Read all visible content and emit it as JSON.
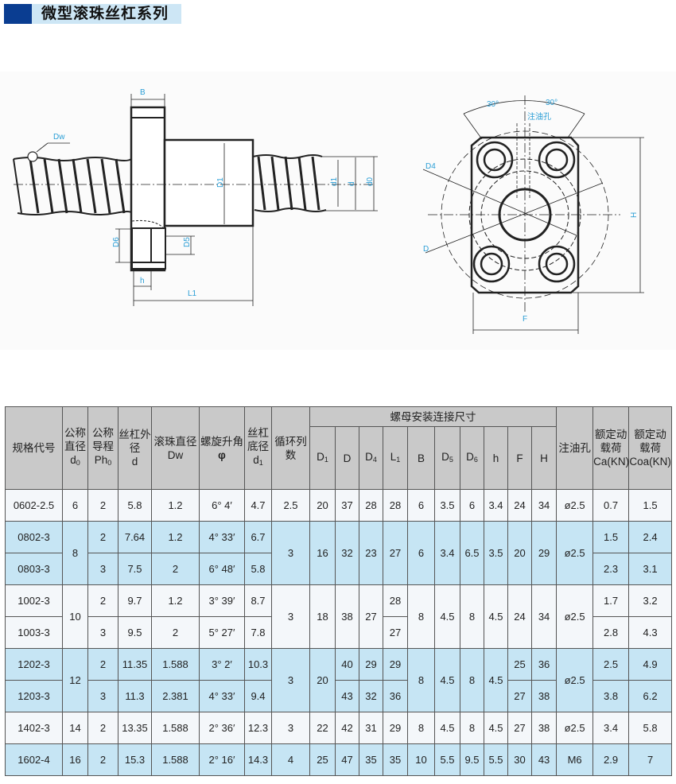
{
  "title": "微型滚珠丝杠系列",
  "drawing": {
    "labels": {
      "B": "B",
      "Dw": "Dw",
      "D1": "D1",
      "d1": "d1",
      "d": "d",
      "d0": "d0",
      "D6": "D6",
      "D5": "D5",
      "h": "h",
      "L1": "L1",
      "angle_left": "30°",
      "angle_right": "30°",
      "oil_hole": "注油孔",
      "D4": "D4",
      "D": "D",
      "H": "H",
      "F": "F"
    }
  },
  "table": {
    "headers": {
      "code": "规格代号",
      "d0": "公称直径",
      "d0_sym": "d",
      "d0_sub": "0",
      "ph": "公称导程",
      "ph_sym": "Ph",
      "ph_sub": "0",
      "d": "丝杠外径",
      "d_sym": "d",
      "dw": "滚珠直径Dw",
      "angle": "螺旋升角",
      "angle_sym": "φ",
      "d1": "丝杠底径",
      "d1_sym": "d",
      "d1_sub": "1",
      "circ": "循环列数",
      "group": "螺母安装连接尺寸",
      "sub": [
        {
          "t": "D",
          "s": "1"
        },
        {
          "t": "D",
          "s": ""
        },
        {
          "t": "D",
          "s": "4"
        },
        {
          "t": "L",
          "s": "1"
        },
        {
          "t": "B",
          "s": ""
        },
        {
          "t": "D",
          "s": "5"
        },
        {
          "t": "D",
          "s": "6"
        },
        {
          "t": "h",
          "s": ""
        },
        {
          "t": "F",
          "s": ""
        },
        {
          "t": "H",
          "s": ""
        }
      ],
      "oil": "注油孔",
      "ca": "额定动载荷Ca(KN)",
      "coa": "额定动载荷Coa(KN)"
    },
    "rows": [
      {
        "g": 0,
        "cells": [
          [
            "0602-2.5"
          ],
          [
            "6"
          ],
          [
            "2"
          ],
          [
            "5.8"
          ],
          [
            "1.2"
          ],
          [
            "6° 4′"
          ],
          [
            "4.7"
          ],
          [
            "2.5"
          ],
          [
            "20"
          ],
          [
            "37"
          ],
          [
            "28"
          ],
          [
            "28"
          ],
          [
            "6"
          ],
          [
            "3.5"
          ],
          [
            "6"
          ],
          [
            "3.4"
          ],
          [
            "24"
          ],
          [
            "34"
          ],
          [
            "ø2.5"
          ],
          [
            "0.7"
          ],
          [
            "1.5"
          ]
        ]
      },
      {
        "g": 1,
        "cells": [
          [
            "0802-3"
          ],
          [
            "8",
            2
          ],
          [
            "2"
          ],
          [
            "7.64"
          ],
          [
            "1.2"
          ],
          [
            "4° 33′"
          ],
          [
            "6.7"
          ],
          [
            "3",
            2
          ],
          [
            "16",
            2
          ],
          [
            "32",
            2
          ],
          [
            "23",
            2
          ],
          [
            "27",
            2
          ],
          [
            "6",
            2
          ],
          [
            "3.4",
            2
          ],
          [
            "6.5",
            2
          ],
          [
            "3.5",
            2
          ],
          [
            "20",
            2
          ],
          [
            "29",
            2
          ],
          [
            "ø2.5",
            2
          ],
          [
            "1.5"
          ],
          [
            "2.4"
          ]
        ]
      },
      {
        "g": 1,
        "cells": [
          [
            "0803-3"
          ],
          [
            "3"
          ],
          [
            "7.5"
          ],
          [
            "2"
          ],
          [
            "6° 48′"
          ],
          [
            "5.8"
          ],
          [
            "2.3"
          ],
          [
            "3.1"
          ]
        ]
      },
      {
        "g": 0,
        "cells": [
          [
            "1002-3"
          ],
          [
            "10",
            2
          ],
          [
            "2"
          ],
          [
            "9.7"
          ],
          [
            "1.2"
          ],
          [
            "3° 39′"
          ],
          [
            "8.7"
          ],
          [
            "3",
            2
          ],
          [
            "18",
            2
          ],
          [
            "38",
            2
          ],
          [
            "27",
            2
          ],
          [
            "28"
          ],
          [
            "8",
            2
          ],
          [
            "4.5",
            2
          ],
          [
            "8",
            2
          ],
          [
            "4.5",
            2
          ],
          [
            "24",
            2
          ],
          [
            "34",
            2
          ],
          [
            "ø2.5",
            2
          ],
          [
            "1.7"
          ],
          [
            "3.2"
          ]
        ]
      },
      {
        "g": 0,
        "cells": [
          [
            "1003-3"
          ],
          [
            "3"
          ],
          [
            "9.5"
          ],
          [
            "2"
          ],
          [
            "5° 27′"
          ],
          [
            "7.8"
          ],
          [
            "27"
          ],
          [
            "2.8"
          ],
          [
            "4.3"
          ]
        ]
      },
      {
        "g": 1,
        "cells": [
          [
            "1202-3"
          ],
          [
            "12",
            2
          ],
          [
            "2"
          ],
          [
            "11.35"
          ],
          [
            "1.588"
          ],
          [
            "3° 2′"
          ],
          [
            "10.3"
          ],
          [
            "3",
            2
          ],
          [
            "20",
            2
          ],
          [
            "40"
          ],
          [
            "29"
          ],
          [
            "29"
          ],
          [
            "8",
            2
          ],
          [
            "4.5",
            2
          ],
          [
            "8",
            2
          ],
          [
            "4.5",
            2
          ],
          [
            "25"
          ],
          [
            "36"
          ],
          [
            "ø2.5",
            2
          ],
          [
            "2.5"
          ],
          [
            "4.9"
          ]
        ]
      },
      {
        "g": 1,
        "cells": [
          [
            "1203-3"
          ],
          [
            "3"
          ],
          [
            "11.3"
          ],
          [
            "2.381"
          ],
          [
            "4° 33′"
          ],
          [
            "9.4"
          ],
          [
            "43"
          ],
          [
            "32"
          ],
          [
            "36"
          ],
          [
            "27"
          ],
          [
            "38"
          ],
          [
            "3.8"
          ],
          [
            "6.2"
          ]
        ]
      },
      {
        "g": 0,
        "cells": [
          [
            "1402-3"
          ],
          [
            "14"
          ],
          [
            "2"
          ],
          [
            "13.35"
          ],
          [
            "1.588"
          ],
          [
            "2° 36′"
          ],
          [
            "12.3"
          ],
          [
            "3"
          ],
          [
            "22"
          ],
          [
            "42"
          ],
          [
            "31"
          ],
          [
            "29"
          ],
          [
            "8"
          ],
          [
            "4.5"
          ],
          [
            "8"
          ],
          [
            "4.5"
          ],
          [
            "27"
          ],
          [
            "38"
          ],
          [
            "ø2.5"
          ],
          [
            "3.4"
          ],
          [
            "5.8"
          ]
        ]
      },
      {
        "g": 1,
        "cells": [
          [
            "1602-4"
          ],
          [
            "16"
          ],
          [
            "2"
          ],
          [
            "15.3"
          ],
          [
            "1.588"
          ],
          [
            "2° 16′"
          ],
          [
            "14.3"
          ],
          [
            "4"
          ],
          [
            "25"
          ],
          [
            "47"
          ],
          [
            "35"
          ],
          [
            "35"
          ],
          [
            "10"
          ],
          [
            "5.5"
          ],
          [
            "9.5"
          ],
          [
            "5.5"
          ],
          [
            "30"
          ],
          [
            "43"
          ],
          [
            "M6"
          ],
          [
            "2.9"
          ],
          [
            "7"
          ]
        ]
      }
    ]
  },
  "colors": {
    "title_block": "#0a3d91",
    "title_band": "#cde6f5",
    "header_bg": "#c9c9c9",
    "row_light": "#f4f7fa",
    "row_blue": "#c6e5f4",
    "label_blue": "#2a9ed6"
  }
}
